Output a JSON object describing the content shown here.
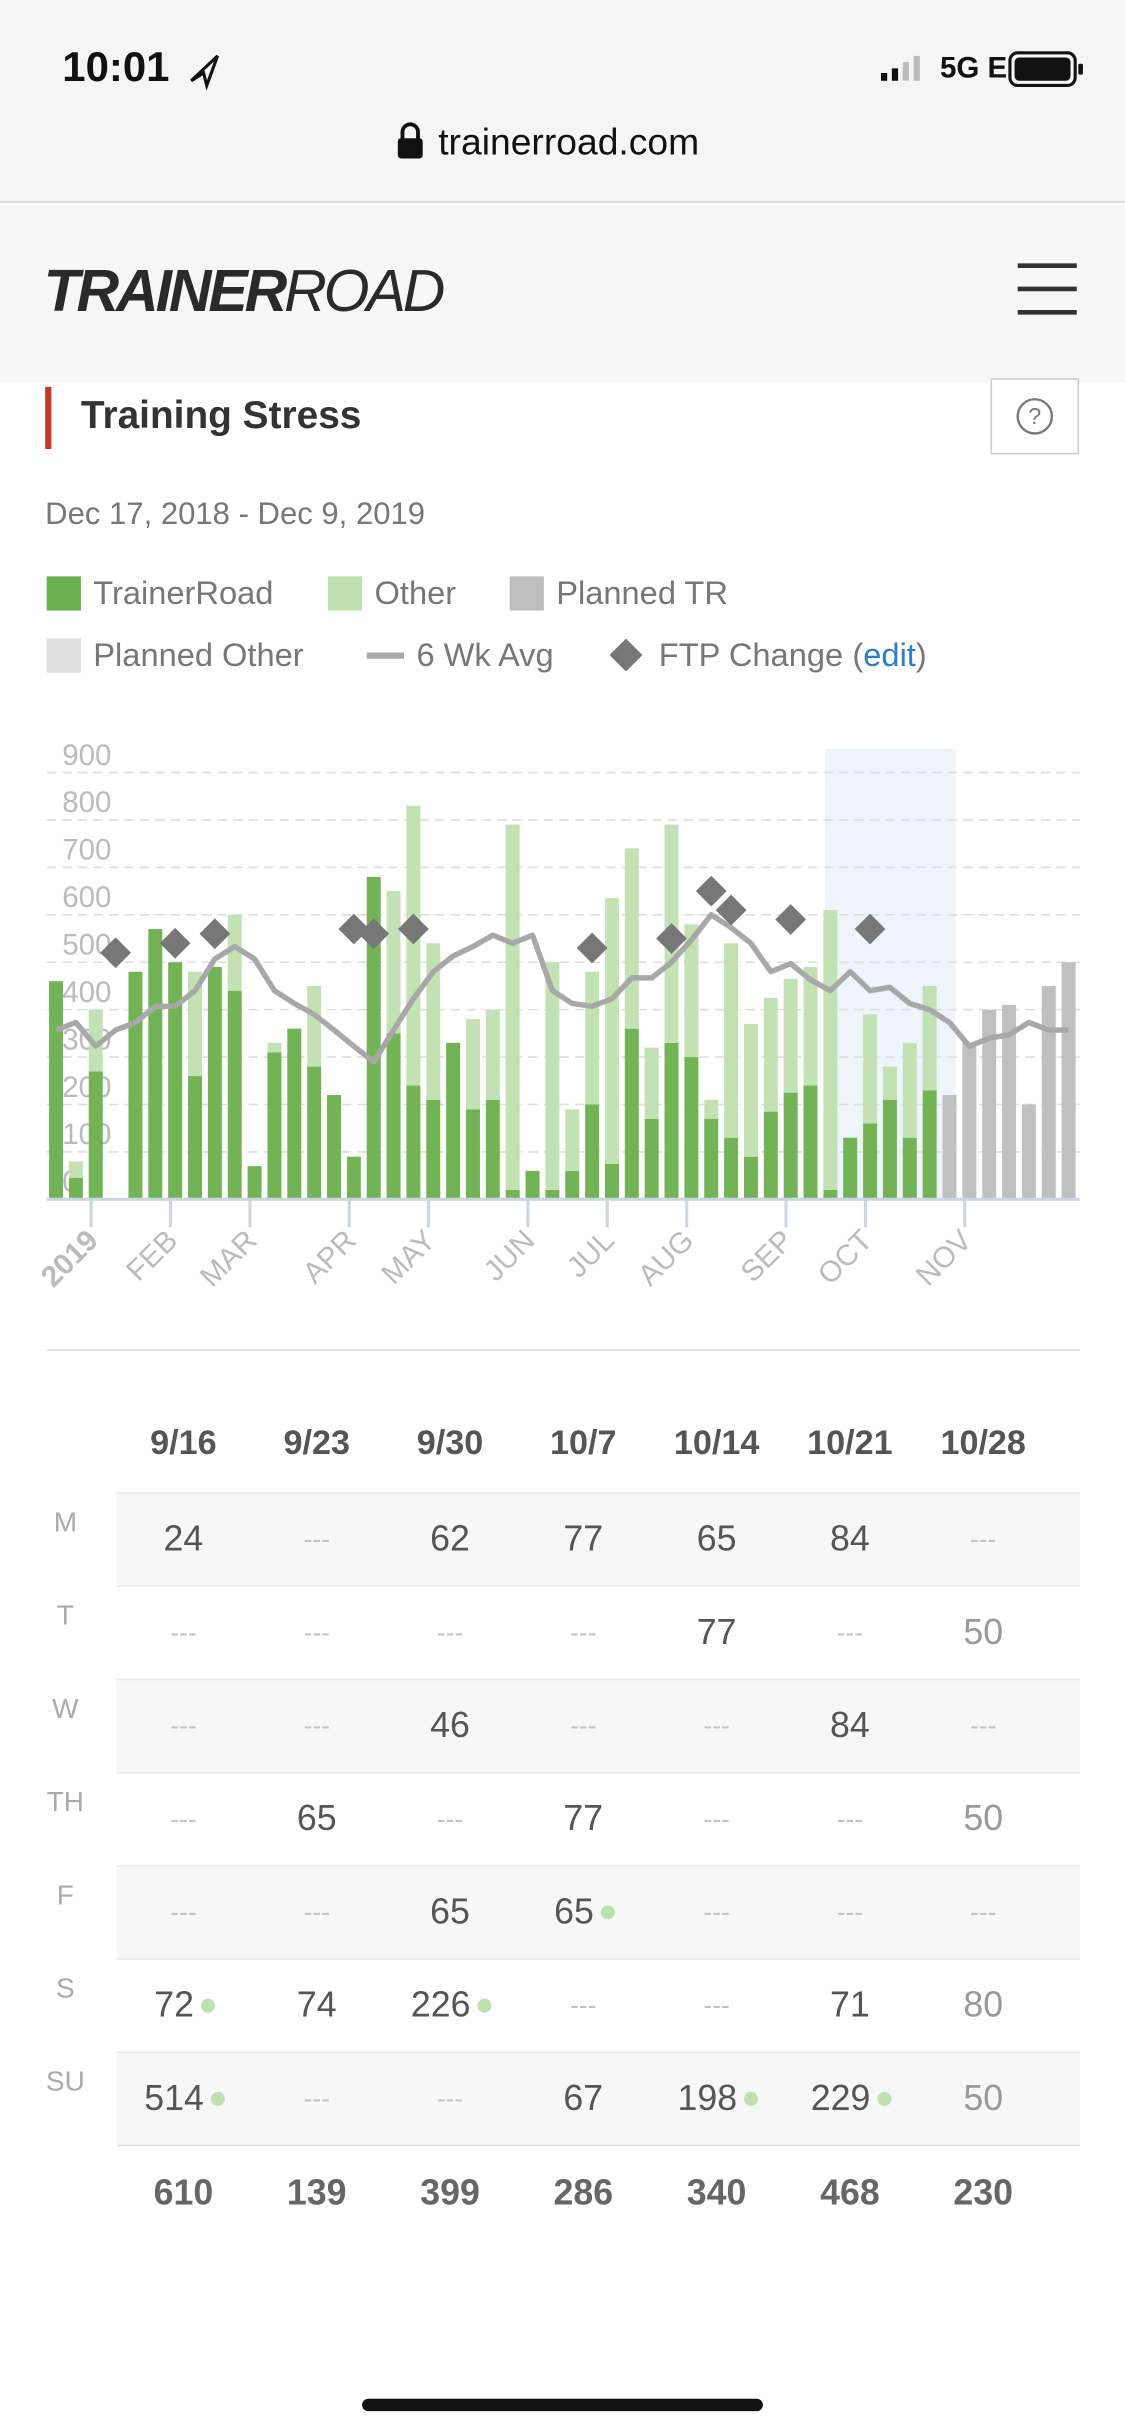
{
  "status_bar": {
    "time": "10:01",
    "network": "5G E"
  },
  "browser": {
    "url": "trainerroad.com"
  },
  "header": {
    "logo_bold": "TRAINER",
    "logo_light": "ROAD"
  },
  "section": {
    "title": "Training Stress",
    "help": "?",
    "date_range": "Dec 17, 2018 - Dec 9, 2019"
  },
  "chart_data": {
    "type": "bar",
    "stacked": true,
    "grid": true,
    "categories": [
      null,
      null,
      "2019",
      null,
      null,
      null,
      "FEB",
      null,
      null,
      null,
      "MAR",
      null,
      null,
      null,
      null,
      "APR",
      null,
      null,
      null,
      "MAY",
      null,
      null,
      null,
      null,
      "JUN",
      null,
      null,
      null,
      "JUL",
      null,
      null,
      null,
      "AUG",
      null,
      null,
      null,
      null,
      "SEP",
      null,
      null,
      null,
      "OCT",
      null,
      null,
      null,
      null,
      "NOV",
      null,
      null,
      null,
      null,
      null
    ],
    "ylim": [
      0,
      950
    ],
    "yticks": [
      0,
      100,
      200,
      300,
      400,
      500,
      600,
      700,
      800,
      900
    ],
    "legend_link": {
      "open": "(",
      "text": "edit",
      "close": ")"
    },
    "series": [
      {
        "name": "TrainerRoad",
        "type": "bar",
        "color": "#6ab04c",
        "values": [
          460,
          45,
          270,
          null,
          480,
          570,
          500,
          260,
          490,
          440,
          70,
          310,
          360,
          280,
          220,
          90,
          680,
          350,
          240,
          210,
          330,
          190,
          210,
          20,
          60,
          20,
          60,
          200,
          75,
          360,
          170,
          330,
          300,
          170,
          130,
          90,
          185,
          225,
          240,
          20,
          130,
          160,
          210,
          130,
          230,
          null,
          null,
          null,
          null,
          null,
          null,
          null
        ]
      },
      {
        "name": "Other",
        "type": "bar",
        "color": "#bfe0b0",
        "values": [
          null,
          35,
          130,
          null,
          null,
          null,
          null,
          220,
          null,
          160,
          null,
          20,
          null,
          170,
          null,
          null,
          null,
          300,
          590,
          330,
          null,
          190,
          190,
          770,
          null,
          480,
          130,
          280,
          560,
          380,
          150,
          460,
          280,
          40,
          410,
          280,
          240,
          240,
          250,
          590,
          null,
          230,
          70,
          200,
          220,
          null,
          null,
          null,
          null,
          null,
          null,
          null
        ]
      },
      {
        "name": "Planned TR",
        "type": "bar",
        "color": "#bdbdbd",
        "values": [
          null,
          null,
          null,
          null,
          null,
          null,
          null,
          null,
          null,
          null,
          null,
          null,
          null,
          null,
          null,
          null,
          null,
          null,
          null,
          null,
          null,
          null,
          null,
          null,
          null,
          null,
          null,
          null,
          null,
          null,
          null,
          null,
          null,
          null,
          null,
          null,
          null,
          null,
          null,
          null,
          null,
          null,
          null,
          null,
          null,
          220,
          330,
          400,
          410,
          200,
          450,
          500
        ]
      },
      {
        "name": "Planned Other",
        "type": "bar",
        "color": "#dedede",
        "values": [
          null,
          null,
          null,
          null,
          null,
          null,
          null,
          null,
          null,
          null,
          null,
          null,
          null,
          null,
          null,
          null,
          null,
          null,
          null,
          null,
          null,
          null,
          null,
          null,
          null,
          null,
          null,
          null,
          null,
          null,
          null,
          null,
          null,
          null,
          null,
          null,
          null,
          null,
          null,
          null,
          null,
          null,
          null,
          null,
          null,
          null,
          null,
          null,
          null,
          null,
          null,
          null
        ]
      },
      {
        "name": "6 Wk Avg",
        "type": "line",
        "color": "#a8a8a8",
        "values": [
          357,
          373,
          323,
          357,
          373,
          407,
          407,
          440,
          507,
          533,
          507,
          440,
          413,
          390,
          357,
          323,
          290,
          357,
          423,
          480,
          513,
          533,
          557,
          540,
          557,
          440,
          413,
          407,
          423,
          467,
          467,
          500,
          547,
          600,
          573,
          540,
          480,
          497,
          463,
          440,
          480,
          440,
          447,
          413,
          400,
          373,
          323,
          340,
          347,
          373,
          357,
          357
        ]
      },
      {
        "name": "FTP Change",
        "type": "diamond",
        "color": "#777777",
        "values": [
          null,
          null,
          null,
          520,
          null,
          null,
          540,
          null,
          560,
          null,
          null,
          null,
          null,
          null,
          null,
          570,
          560,
          null,
          570,
          null,
          null,
          null,
          null,
          null,
          null,
          null,
          null,
          530,
          null,
          null,
          null,
          550,
          null,
          650,
          610,
          null,
          null,
          590,
          null,
          null,
          null,
          570,
          null,
          null,
          null,
          null,
          null,
          null,
          null,
          null,
          null,
          null
        ]
      }
    ]
  },
  "table": {
    "columns": [
      "9/16",
      "9/23",
      "9/30",
      "10/7",
      "10/14",
      "10/21",
      "10/28"
    ],
    "rows": [
      {
        "day": "M",
        "cells": [
          "24",
          "---",
          "62",
          "77",
          "65",
          "84",
          "---"
        ],
        "other": [
          false,
          false,
          false,
          false,
          false,
          false,
          false
        ]
      },
      {
        "day": "T",
        "cells": [
          "---",
          "---",
          "---",
          "---",
          "77",
          "---",
          "50"
        ],
        "other": [
          false,
          false,
          false,
          false,
          false,
          false,
          false
        ]
      },
      {
        "day": "W",
        "cells": [
          "---",
          "---",
          "46",
          "---",
          "---",
          "84",
          "---"
        ],
        "other": [
          false,
          false,
          false,
          false,
          false,
          false,
          false
        ]
      },
      {
        "day": "TH",
        "cells": [
          "---",
          "65",
          "---",
          "77",
          "---",
          "---",
          "50"
        ],
        "other": [
          false,
          false,
          false,
          false,
          false,
          false,
          false
        ]
      },
      {
        "day": "F",
        "cells": [
          "---",
          "---",
          "65",
          "65",
          "---",
          "---",
          "---"
        ],
        "other": [
          false,
          false,
          false,
          true,
          false,
          false,
          false
        ]
      },
      {
        "day": "S",
        "cells": [
          "72",
          "74",
          "226",
          "---",
          "---",
          "71",
          "80"
        ],
        "other": [
          true,
          false,
          true,
          false,
          false,
          false,
          false
        ]
      },
      {
        "day": "SU",
        "cells": [
          "514",
          "---",
          "---",
          "67",
          "198",
          "229",
          "50"
        ],
        "other": [
          true,
          false,
          false,
          false,
          true,
          true,
          false
        ]
      }
    ],
    "totals": [
      "610",
      "139",
      "399",
      "286",
      "340",
      "468",
      "230"
    ]
  }
}
